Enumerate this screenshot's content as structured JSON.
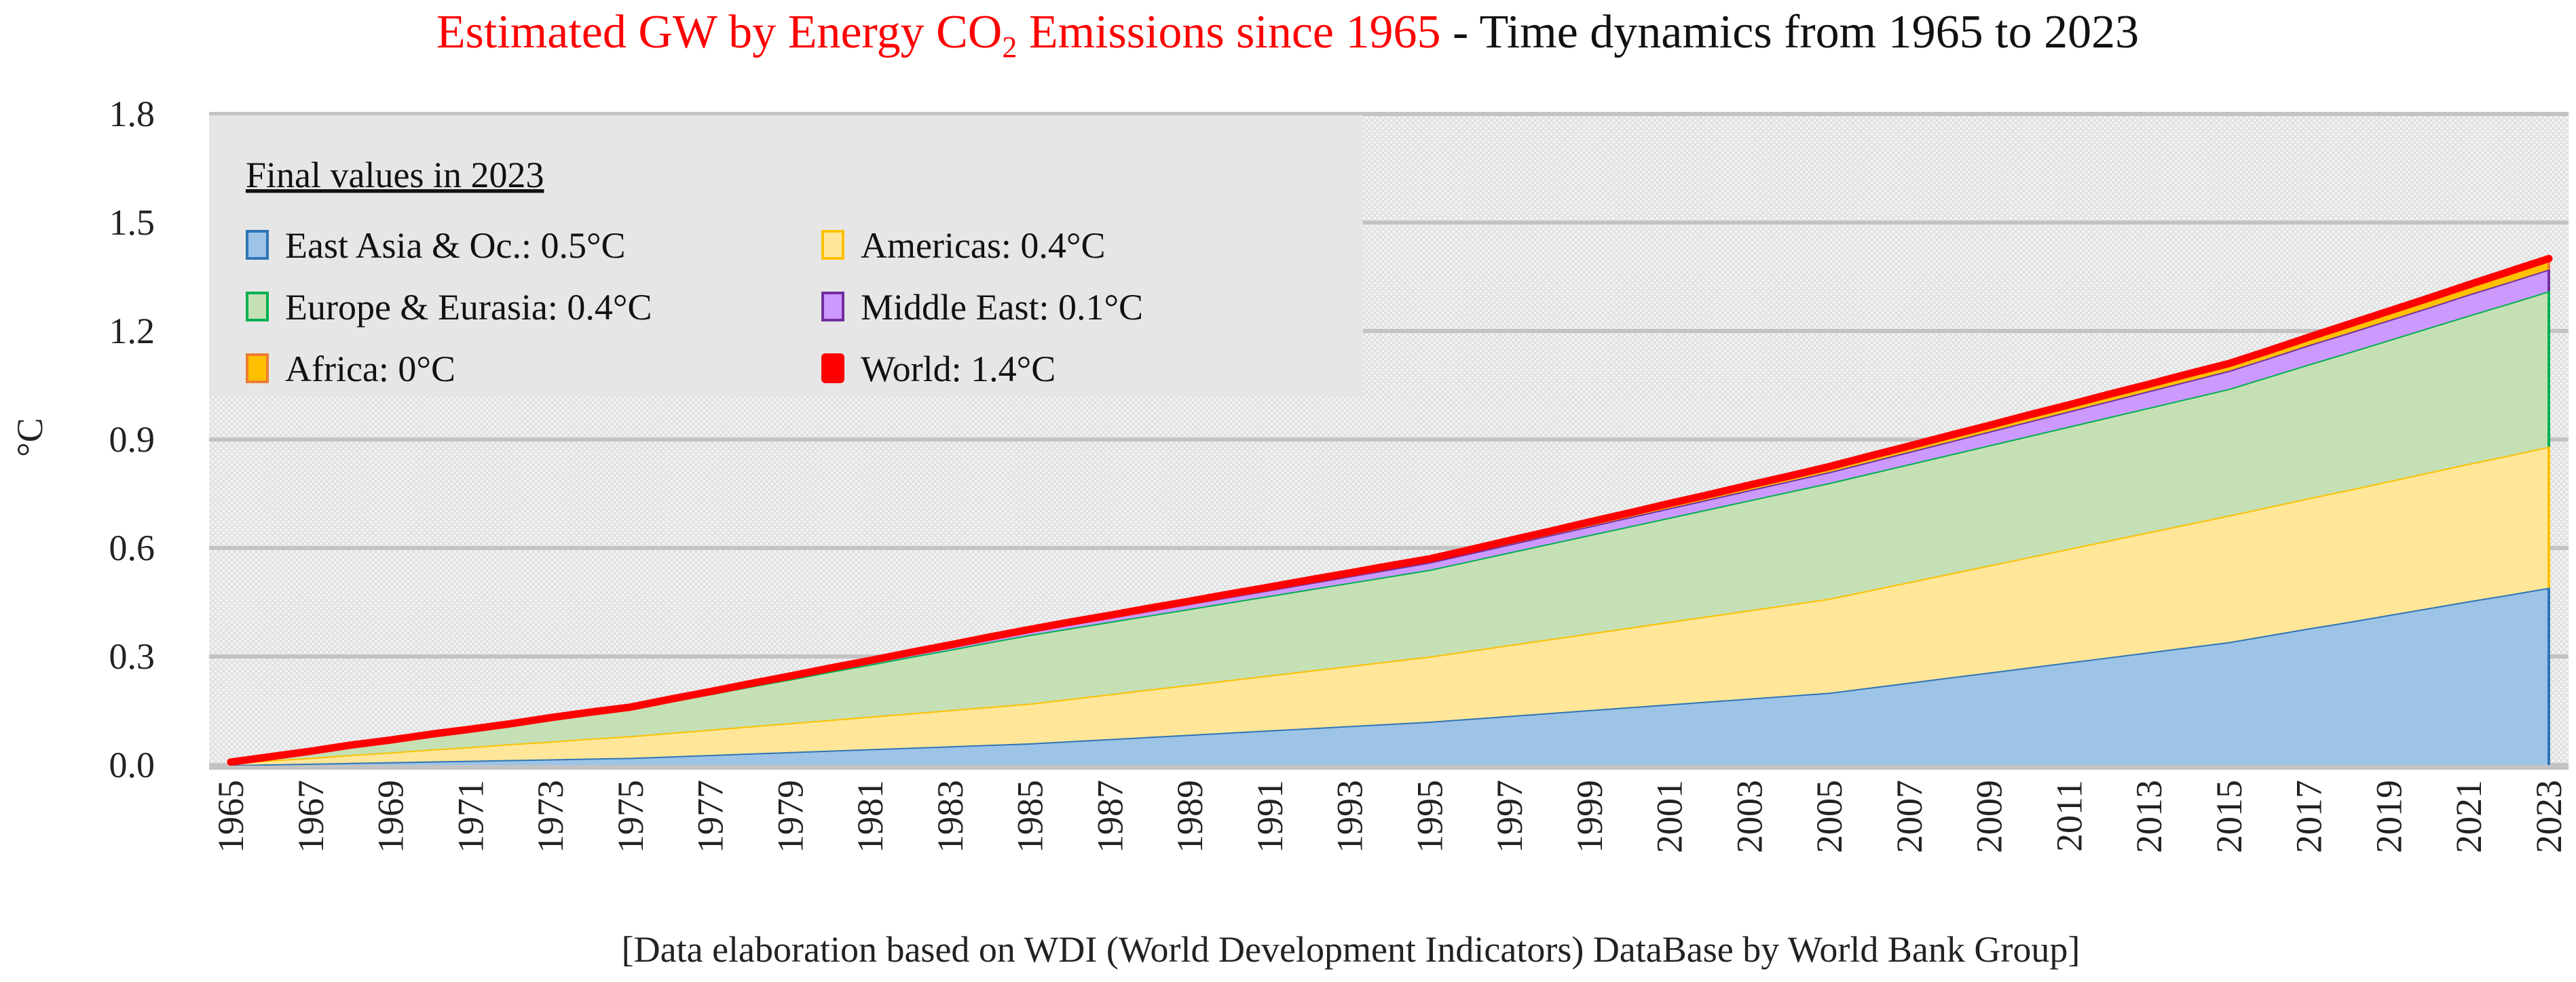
{
  "chart_data": {
    "type": "area",
    "stacked": true,
    "title_red": "Estimated GW by Energy CO",
    "title_red_sub": "2",
    "title_red_end": " Emissions since 1965",
    "title_black": " - Time dynamics from 1965 to 2023",
    "ylabel": "°C",
    "xlabel": "",
    "ylim": [
      0,
      1.8
    ],
    "yticks": [
      "0.0",
      "0.3",
      "0.6",
      "0.9",
      "1.2",
      "1.5",
      "1.8"
    ],
    "ytick_values": [
      0,
      0.3,
      0.6,
      0.9,
      1.2,
      1.5,
      1.8
    ],
    "grid": true,
    "x_start": 1965,
    "x_end": 2023,
    "xtick_step": 2,
    "footnote": "[Data elaboration based on WDI (World Development Indicators) DataBase by World Bank Group]",
    "legend": {
      "position": "top-left",
      "title": "Final values in 2023",
      "items": [
        {
          "label": "East Asia & Oc.: 0.5°C",
          "fill": "#9dc3e6",
          "stroke": "#2e75b6"
        },
        {
          "label": "Americas: 0.4°C",
          "fill": "#ffe699",
          "stroke": "#ffc000"
        },
        {
          "label": "Europe & Eurasia: 0.4°C",
          "fill": "#c5e0b4",
          "stroke": "#00b050"
        },
        {
          "label": "Middle East: 0.1°C",
          "fill": "#cc99ff",
          "stroke": "#7030a0"
        },
        {
          "label": "Africa: 0°C",
          "fill": "#ffc000",
          "stroke": "#ed7d31"
        },
        {
          "label": "World: 1.4°C",
          "fill": "#ff0000",
          "stroke": "#ff0000"
        }
      ]
    },
    "series": [
      {
        "name": "East Asia & Oc.",
        "fill": "#9dc3e6",
        "stroke": "#2e75b6",
        "values": [
          0,
          0.002,
          0.004,
          0.006,
          0.008,
          0.01,
          0.012,
          0.014,
          0.016,
          0.018,
          0.02,
          0.024,
          0.028,
          0.032,
          0.036,
          0.04,
          0.044,
          0.048,
          0.052,
          0.056,
          0.06,
          0.066,
          0.072,
          0.078,
          0.084,
          0.09,
          0.096,
          0.102,
          0.108,
          0.114,
          0.12,
          0.128,
          0.136,
          0.144,
          0.152,
          0.16,
          0.168,
          0.176,
          0.184,
          0.192,
          0.2,
          0.214,
          0.228,
          0.242,
          0.256,
          0.27,
          0.284,
          0.298,
          0.312,
          0.326,
          0.34,
          0.359,
          0.378,
          0.396,
          0.415,
          0.434,
          0.453,
          0.471,
          0.49
        ]
      },
      {
        "name": "Americas",
        "fill": "#ffe699",
        "stroke": "#ffc000",
        "values": [
          0.005,
          0.011,
          0.016,
          0.022,
          0.027,
          0.033,
          0.038,
          0.044,
          0.049,
          0.055,
          0.06,
          0.065,
          0.07,
          0.075,
          0.08,
          0.085,
          0.09,
          0.095,
          0.1,
          0.105,
          0.11,
          0.117,
          0.124,
          0.131,
          0.138,
          0.145,
          0.152,
          0.159,
          0.166,
          0.173,
          0.18,
          0.188,
          0.196,
          0.204,
          0.212,
          0.22,
          0.228,
          0.236,
          0.244,
          0.252,
          0.26,
          0.269,
          0.278,
          0.287,
          0.296,
          0.305,
          0.314,
          0.323,
          0.332,
          0.341,
          0.35,
          0.355,
          0.36,
          0.365,
          0.37,
          0.375,
          0.38,
          0.385,
          0.39
        ]
      },
      {
        "name": "Europe & Eurasia",
        "fill": "#c5e0b4",
        "stroke": "#00b050",
        "values": [
          0.003,
          0.01,
          0.017,
          0.025,
          0.032,
          0.039,
          0.046,
          0.053,
          0.061,
          0.068,
          0.075,
          0.087,
          0.098,
          0.11,
          0.121,
          0.133,
          0.144,
          0.156,
          0.167,
          0.179,
          0.19,
          0.195,
          0.2,
          0.205,
          0.21,
          0.215,
          0.22,
          0.225,
          0.23,
          0.235,
          0.24,
          0.248,
          0.256,
          0.264,
          0.272,
          0.28,
          0.288,
          0.296,
          0.304,
          0.312,
          0.32,
          0.323,
          0.326,
          0.329,
          0.332,
          0.335,
          0.338,
          0.341,
          0.344,
          0.347,
          0.35,
          0.36,
          0.37,
          0.38,
          0.39,
          0.4,
          0.41,
          0.42,
          0.43
        ]
      },
      {
        "name": "Middle East",
        "fill": "#cc99ff",
        "stroke": "#7030a0",
        "values": [
          0,
          0,
          0.001,
          0.001,
          0.001,
          0.002,
          0.002,
          0.002,
          0.003,
          0.003,
          0.003,
          0.004,
          0.004,
          0.005,
          0.006,
          0.006,
          0.007,
          0.008,
          0.008,
          0.009,
          0.01,
          0.011,
          0.012,
          0.013,
          0.014,
          0.015,
          0.016,
          0.017,
          0.018,
          0.019,
          0.02,
          0.021,
          0.022,
          0.023,
          0.024,
          0.025,
          0.026,
          0.027,
          0.028,
          0.029,
          0.03,
          0.032,
          0.034,
          0.036,
          0.038,
          0.04,
          0.042,
          0.044,
          0.046,
          0.048,
          0.05,
          0.051,
          0.053,
          0.054,
          0.055,
          0.056,
          0.058,
          0.059,
          0.06
        ]
      },
      {
        "name": "Africa",
        "fill": "#ffc000",
        "stroke": "#ed7d31",
        "values": [
          0,
          0,
          0,
          0.001,
          0.001,
          0.001,
          0.001,
          0.001,
          0.002,
          0.002,
          0.002,
          0.002,
          0.003,
          0.003,
          0.003,
          0.004,
          0.004,
          0.004,
          0.005,
          0.005,
          0.005,
          0.006,
          0.006,
          0.007,
          0.007,
          0.008,
          0.008,
          0.009,
          0.009,
          0.01,
          0.01,
          0.01,
          0.011,
          0.011,
          0.012,
          0.012,
          0.013,
          0.013,
          0.014,
          0.014,
          0.015,
          0.016,
          0.016,
          0.017,
          0.017,
          0.018,
          0.018,
          0.019,
          0.019,
          0.02,
          0.02,
          0.021,
          0.022,
          0.024,
          0.025,
          0.026,
          0.027,
          0.029,
          0.03
        ]
      }
    ],
    "world_line": {
      "name": "World",
      "color": "#ff0000",
      "note": "sum of all series"
    }
  }
}
